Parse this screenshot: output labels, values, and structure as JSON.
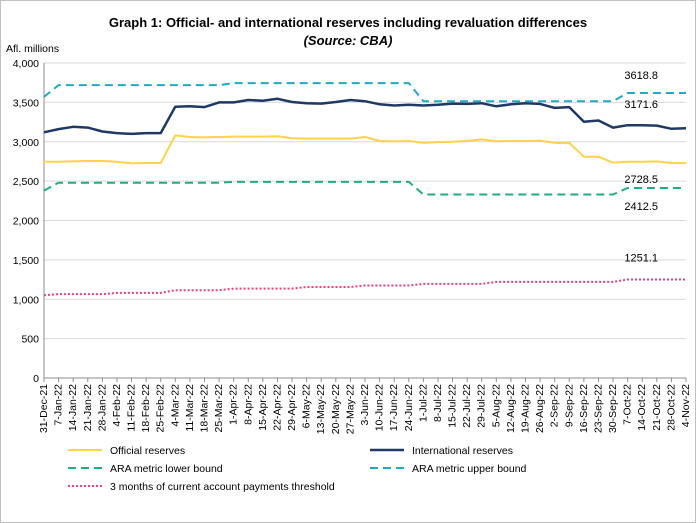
{
  "chart_data": {
    "type": "line",
    "title": "Graph 1: Official- and international reserves including revaluation differences",
    "subtitle": "(Source: CBA)",
    "ylabel": "Afl. millions",
    "ylim": [
      0,
      4000
    ],
    "y_ticks": [
      "0",
      "500",
      "1,000",
      "1,500",
      "2,000",
      "2,500",
      "3,000",
      "3,500",
      "4,000"
    ],
    "y_tick_values": [
      0,
      500,
      1000,
      1500,
      2000,
      2500,
      3000,
      3500,
      4000
    ],
    "grid": true,
    "legend_position": "bottom",
    "x": [
      "31-Dec-21",
      "7-Jan-22",
      "14-Jan-22",
      "21-Jan-22",
      "28-Jan-22",
      "4-Feb-22",
      "11-Feb-22",
      "18-Feb-22",
      "25-Feb-22",
      "4-Mar-22",
      "11-Mar-22",
      "18-Mar-22",
      "25-Mar-22",
      "1-Apr-22",
      "8-Apr-22",
      "15-Apr-22",
      "22-Apr-22",
      "29-Apr-22",
      "6-May-22",
      "13-May-22",
      "20-May-22",
      "27-May-22",
      "3-Jun-22",
      "10-Jun-22",
      "17-Jun-22",
      "24-Jun-22",
      "1-Jul-22",
      "8-Jul-22",
      "15-Jul-22",
      "22-Jul-22",
      "29-Jul-22",
      "5-Aug-22",
      "12-Aug-22",
      "19-Aug-22",
      "26-Aug-22",
      "2-Sep-22",
      "9-Sep-22",
      "16-Sep-22",
      "23-Sep-22",
      "30-Sep-22",
      "7-Oct-22",
      "14-Oct-22",
      "21-Oct-22",
      "28-Oct-22",
      "4-Nov-22"
    ],
    "x_tick_labels": [
      "31-Dec-21",
      "7-Jan-22",
      "14-Jan-22",
      "21-Jan-22",
      "28-Jan-22",
      "4-Feb-22",
      "11-Feb-22",
      "18-Feb-22",
      "25-Feb-22",
      "4-Mar-22",
      "11-Mar-22",
      "18-Mar-22",
      "25-Mar-22",
      "1-Apr-22",
      "8-Apr-22",
      "15-Apr-22",
      "22-Apr-22",
      "29-Apr-22",
      "6-May-22",
      "13-May-22",
      "20-May-22",
      "27-May-22",
      "3-Jun-22",
      "10-Jun-22",
      "17-Jun-22",
      "24-Jun-22",
      "1-Jul-22",
      "8-Jul-22",
      "15-Jul-22",
      "22-Jul-22",
      "29-Jul-22",
      "5-Aug-22",
      "12-Aug-22",
      "19-Aug-22",
      "26-Aug-22",
      "2-Sep-22",
      "9-Sep-22",
      "16-Sep-22",
      "23-Sep-22",
      "30-Sep-22",
      "7-Oct-22",
      "14-Oct-22",
      "21-Oct-22",
      "28-Oct-22",
      "4-Nov-22"
    ],
    "series": [
      {
        "name": "Official reserves",
        "color": "#FFD24D",
        "dash": "solid",
        "width": 2,
        "values": [
          2745,
          2745,
          2750,
          2755,
          2755,
          2745,
          2725,
          2730,
          2730,
          3080,
          3060,
          3055,
          3060,
          3065,
          3065,
          3065,
          3070,
          3045,
          3040,
          3040,
          3040,
          3040,
          3060,
          3010,
          3005,
          3010,
          2985,
          2995,
          3000,
          3010,
          3030,
          3005,
          3010,
          3010,
          3015,
          2985,
          2985,
          2810,
          2810,
          2735,
          2745,
          2745,
          2750,
          2730,
          2728.5
        ]
      },
      {
        "name": "International reserves",
        "color": "#1F3864",
        "dash": "solid",
        "width": 2.5,
        "values": [
          3120,
          3160,
          3190,
          3180,
          3130,
          3110,
          3100,
          3110,
          3110,
          3445,
          3450,
          3440,
          3500,
          3500,
          3530,
          3520,
          3545,
          3505,
          3490,
          3485,
          3505,
          3530,
          3515,
          3475,
          3460,
          3470,
          3460,
          3470,
          3485,
          3480,
          3490,
          3450,
          3475,
          3490,
          3480,
          3430,
          3440,
          3255,
          3270,
          3180,
          3210,
          3210,
          3205,
          3165,
          3171.6
        ]
      },
      {
        "name": "ARA metric lower bound",
        "color": "#1FAF79",
        "dash": "dash",
        "width": 2,
        "values": [
          2380,
          2480,
          2480,
          2480,
          2480,
          2480,
          2480,
          2480,
          2480,
          2480,
          2480,
          2480,
          2480,
          2490,
          2490,
          2490,
          2490,
          2490,
          2490,
          2490,
          2490,
          2490,
          2490,
          2490,
          2490,
          2490,
          2330,
          2330,
          2330,
          2330,
          2330,
          2330,
          2330,
          2330,
          2330,
          2330,
          2330,
          2330,
          2330,
          2330,
          2412.5,
          2412.5,
          2412.5,
          2412.5,
          2412.5
        ]
      },
      {
        "name": "ARA metric upper bound",
        "color": "#1FA9C9",
        "dash": "dash",
        "width": 2,
        "values": [
          3570,
          3720,
          3720,
          3720,
          3720,
          3720,
          3720,
          3720,
          3720,
          3720,
          3720,
          3720,
          3720,
          3745,
          3745,
          3745,
          3745,
          3745,
          3745,
          3745,
          3745,
          3745,
          3745,
          3745,
          3745,
          3745,
          3515,
          3515,
          3515,
          3515,
          3515,
          3515,
          3515,
          3515,
          3515,
          3515,
          3515,
          3515,
          3515,
          3515,
          3618.8,
          3618.8,
          3618.8,
          3618.8,
          3618.8
        ]
      },
      {
        "name": "3 months of current account payments threshold",
        "color": "#E8417A",
        "dash": "dot",
        "width": 2,
        "values": [
          1050,
          1065,
          1065,
          1065,
          1065,
          1080,
          1080,
          1080,
          1080,
          1115,
          1115,
          1115,
          1115,
          1135,
          1135,
          1135,
          1135,
          1135,
          1155,
          1155,
          1155,
          1155,
          1175,
          1175,
          1175,
          1175,
          1195,
          1195,
          1195,
          1195,
          1195,
          1220,
          1220,
          1220,
          1220,
          1220,
          1220,
          1220,
          1220,
          1220,
          1251.1,
          1251.1,
          1251.1,
          1251.1,
          1251.1
        ]
      }
    ],
    "annotations": [
      {
        "text": "3618.8",
        "series": "ARA metric upper bound"
      },
      {
        "text": "3171.6",
        "series": "International reserves"
      },
      {
        "text": "2728.5",
        "series": "Official reserves"
      },
      {
        "text": "2412.5",
        "series": "ARA metric lower bound"
      },
      {
        "text": "1251.1",
        "series": "3 months of current account payments threshold"
      }
    ]
  }
}
